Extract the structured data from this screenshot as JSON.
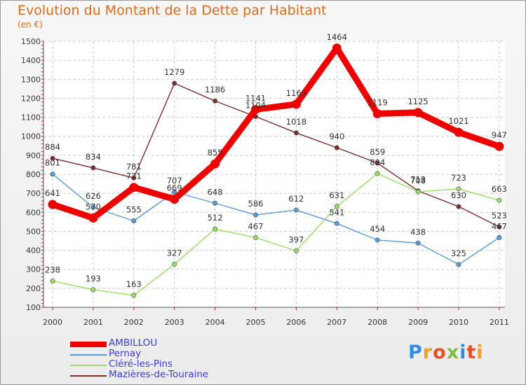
{
  "title": "Evolution du Montant de la Dette par Habitant",
  "subtitle": "(en €)",
  "logo": {
    "text": "Proxiti",
    "letter_colors": [
      "#2f8de4",
      "#f0a020",
      "#e85020",
      "#7ac043",
      "#2f8de4",
      "#e85020",
      "#f0a020"
    ]
  },
  "chart_data": {
    "type": "line",
    "title": "Evolution du Montant de la Dette par Habitant",
    "ylabel": "(en €)",
    "xlabel": "",
    "x": [
      "2000",
      "2001",
      "2002",
      "2003",
      "2004",
      "2005",
      "2006",
      "2007",
      "2008",
      "2009",
      "2010",
      "2011"
    ],
    "ylim": [
      100,
      1500
    ],
    "yticks": [
      100,
      200,
      300,
      400,
      500,
      600,
      700,
      800,
      900,
      1000,
      1100,
      1200,
      1300,
      1400,
      1500
    ],
    "grid": true,
    "legend_position": "bottom-left",
    "series": [
      {
        "name": "AMBILLOU",
        "color": "#ee0000",
        "values": [
          641,
          570,
          731,
          669,
          855,
          1141,
          1169,
          1464,
          1119,
          1125,
          1021,
          947
        ]
      },
      {
        "name": "Pernay",
        "color": "#5b9bd5",
        "values": [
          801,
          626,
          555,
          707,
          648,
          586,
          612,
          541,
          454,
          438,
          325,
          467
        ]
      },
      {
        "name": "Cléré-les-Pins",
        "color": "#99dd66",
        "values": [
          238,
          193,
          163,
          327,
          512,
          467,
          397,
          631,
          804,
          708,
          723,
          663
        ]
      },
      {
        "name": "Mazières-de-Touraine",
        "color": "#7a2e2e",
        "values": [
          884,
          834,
          781,
          1279,
          1186,
          1104,
          1018,
          940,
          859,
          713,
          630,
          523
        ]
      }
    ]
  }
}
